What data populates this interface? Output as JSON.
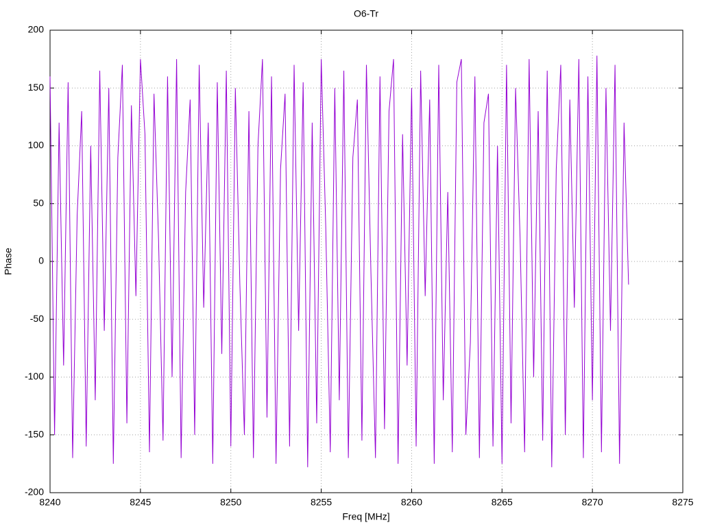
{
  "chart_data": {
    "type": "line",
    "title": "O6-Tr",
    "x_label": "Freq [MHz]",
    "y_label": "Phase",
    "x": [
      8240,
      8240.25,
      8240.5,
      8240.75,
      8241,
      8241.25,
      8241.5,
      8241.75,
      8242,
      8242.25,
      8242.5,
      8242.75,
      8243,
      8243.25,
      8243.5,
      8243.75,
      8244,
      8244.25,
      8244.5,
      8244.75,
      8245,
      8245.25,
      8245.5,
      8245.75,
      8246,
      8246.25,
      8246.5,
      8246.75,
      8247,
      8247.25,
      8247.5,
      8247.75,
      8248,
      8248.25,
      8248.5,
      8248.75,
      8249,
      8249.25,
      8249.5,
      8249.75,
      8250,
      8250.25,
      8250.5,
      8250.75,
      8251,
      8251.25,
      8251.5,
      8251.75,
      8252,
      8252.25,
      8252.5,
      8252.75,
      8253,
      8253.25,
      8253.5,
      8253.75,
      8254,
      8254.25,
      8254.5,
      8254.75,
      8255,
      8255.25,
      8255.5,
      8255.75,
      8256,
      8256.25,
      8256.5,
      8256.75,
      8257,
      8257.25,
      8257.5,
      8257.75,
      8258,
      8258.25,
      8258.5,
      8258.75,
      8259,
      8259.25,
      8259.5,
      8259.75,
      8260,
      8260.25,
      8260.5,
      8260.75,
      8261,
      8261.25,
      8261.5,
      8261.75,
      8262,
      8262.25,
      8262.5,
      8262.75,
      8263,
      8263.25,
      8263.5,
      8263.75,
      8264,
      8264.25,
      8264.5,
      8264.75,
      8265,
      8265.25,
      8265.5,
      8265.75,
      8266,
      8266.25,
      8266.5,
      8266.75,
      8267,
      8267.25,
      8267.5,
      8267.75,
      8268,
      8268.25,
      8268.5,
      8268.75,
      8269,
      8269.25,
      8269.5,
      8269.75,
      8270,
      8270.25,
      8270.5,
      8270.75,
      8271,
      8271.25,
      8271.5,
      8271.75,
      8272
    ],
    "series": [
      {
        "name": "O6-Tr",
        "color": "#9400d3",
        "values": [
          160,
          -150,
          120,
          -90,
          155,
          -170,
          40,
          130,
          -160,
          100,
          -120,
          165,
          -60,
          150,
          -175,
          90,
          170,
          -140,
          135,
          -30,
          175,
          110,
          -165,
          145,
          20,
          -155,
          160,
          -100,
          175,
          -170,
          60,
          140,
          -150,
          170,
          -40,
          120,
          -175,
          155,
          -80,
          165,
          -160,
          150,
          -20,
          -150,
          130,
          -170,
          100,
          175,
          -135,
          160,
          -175,
          80,
          145,
          -160,
          170,
          -60,
          155,
          -178,
          120,
          -140,
          175,
          30,
          -165,
          150,
          -120,
          165,
          -170,
          90,
          140,
          -155,
          170,
          -10,
          -170,
          160,
          -145,
          130,
          175,
          -175,
          110,
          -90,
          150,
          -160,
          165,
          -30,
          140,
          -175,
          170,
          -120,
          60,
          -165,
          155,
          175,
          -150,
          -70,
          160,
          -170,
          120,
          145,
          -160,
          100,
          -175,
          170,
          -140,
          150,
          20,
          -165,
          175,
          -100,
          130,
          -155,
          165,
          -178,
          80,
          170,
          -150,
          140,
          -40,
          175,
          -170,
          160,
          -120,
          178,
          -165,
          150,
          -60,
          170,
          -175,
          120,
          -20
        ]
      }
    ],
    "xlim": [
      8240,
      8275
    ],
    "xticks": [
      8240,
      8245,
      8250,
      8255,
      8260,
      8265,
      8270,
      8275
    ],
    "ylim": [
      -200,
      200
    ],
    "yticks": [
      -200,
      -150,
      -100,
      -50,
      0,
      50,
      100,
      150,
      200
    ],
    "grid": true
  }
}
